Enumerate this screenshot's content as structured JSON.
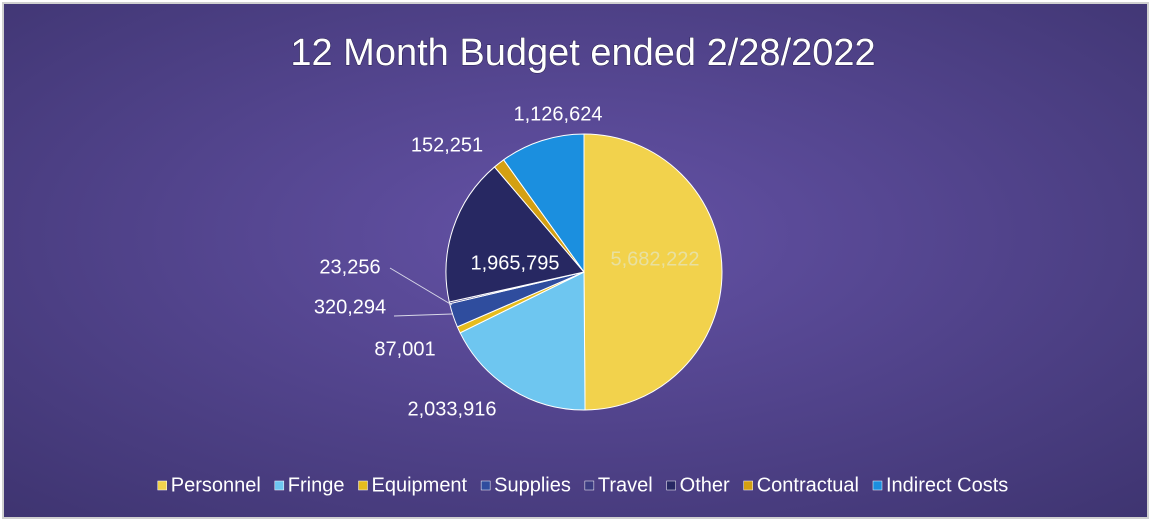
{
  "chart_data": {
    "type": "pie",
    "title": "12 Month Budget ended 2/28/2022",
    "categories": [
      "Personnel",
      "Fringe",
      "Equipment",
      "Supplies",
      "Travel",
      "Other",
      "Contractual",
      "Indirect Costs"
    ],
    "values": [
      5682222,
      2033916,
      87001,
      320294,
      23256,
      1965795,
      152251,
      1126624
    ],
    "value_labels": [
      "5,682,222",
      "2,033,916",
      "87,001",
      "320,294",
      "23,256",
      "1,965,795",
      "152,251",
      "1,126,624"
    ],
    "colors": [
      "#f2d24c",
      "#6ec6f0",
      "#e6bc1e",
      "#2f4d9e",
      "#3b3b80",
      "#272862",
      "#d4a012",
      "#1b8fdf"
    ],
    "legend": "bottom"
  }
}
